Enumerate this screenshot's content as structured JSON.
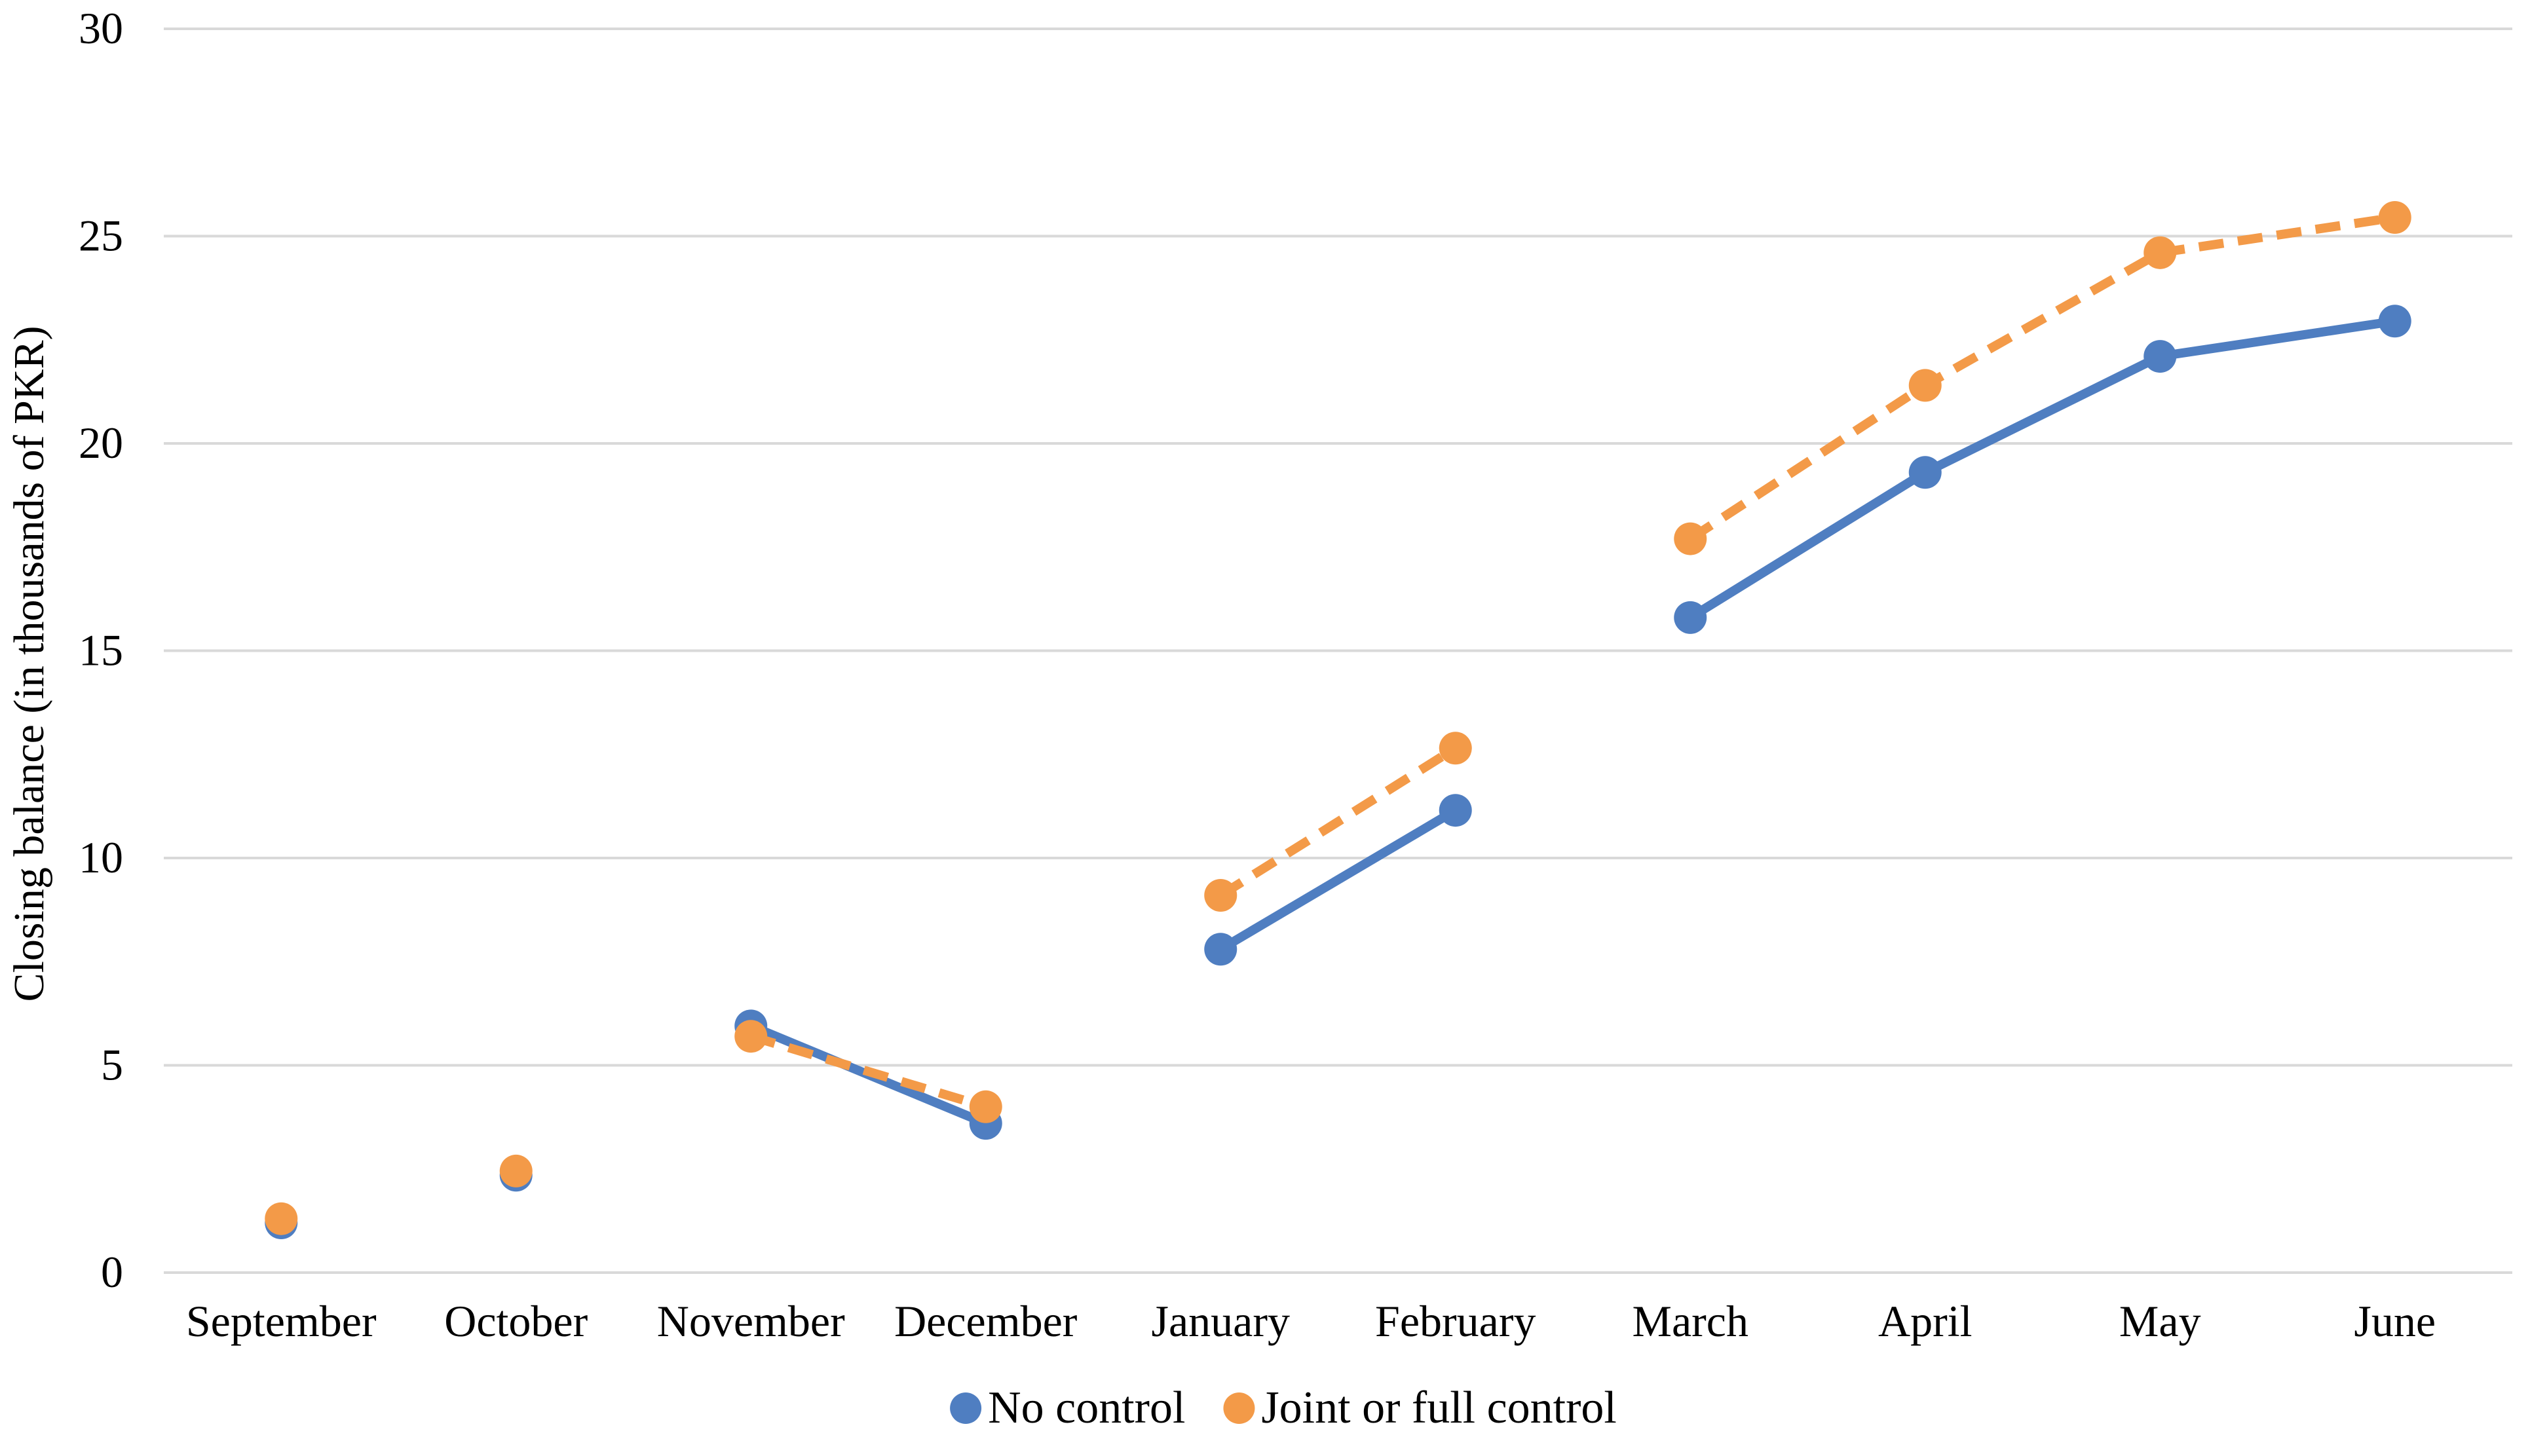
{
  "chart_data": {
    "type": "line",
    "title": "",
    "xlabel": "",
    "ylabel": "Closing balance (in thousands of PKR)",
    "ylim": [
      0,
      30
    ],
    "yticks": [
      0,
      5,
      10,
      15,
      20,
      25,
      30
    ],
    "grid": "horizontal",
    "legend_position": "bottom",
    "categories": [
      "September",
      "October",
      "November",
      "December",
      "January",
      "February",
      "March",
      "April",
      "May",
      "June"
    ],
    "segments": [
      [
        0,
        0
      ],
      [
        1,
        1
      ],
      [
        2,
        3
      ],
      [
        4,
        5
      ],
      [
        6,
        9
      ]
    ],
    "series": [
      {
        "name": "No control",
        "color": "#4F7EC1",
        "line_style": "solid",
        "values": [
          1.2,
          2.35,
          5.95,
          3.6,
          7.8,
          11.15,
          15.8,
          19.3,
          22.1,
          22.95
        ]
      },
      {
        "name": "Joint or full control",
        "color": "#F39A48",
        "line_style": "dashed",
        "values": [
          1.3,
          2.45,
          5.7,
          4.0,
          9.1,
          12.65,
          17.7,
          21.4,
          24.6,
          25.45
        ]
      }
    ]
  }
}
